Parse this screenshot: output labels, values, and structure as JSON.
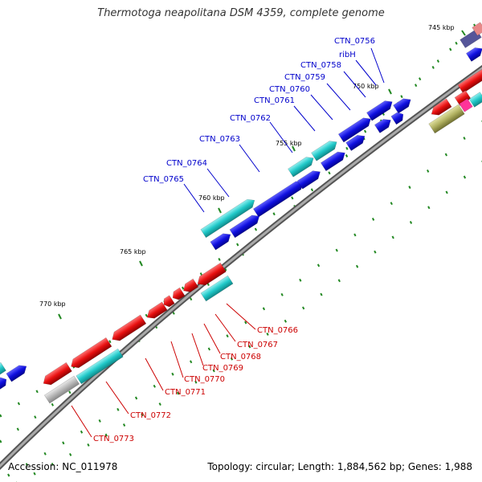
{
  "title": "Thermotoga neapolitana DSM 4359, complete genome",
  "footer": {
    "accession": "Accession: NC_011978",
    "summary": "Topology: circular; Length: 1,884,562 bp; Genes: 1,988"
  },
  "colors": {
    "plus_strand_cds": "#1010e0",
    "minus_strand_cds": "#e81010",
    "cyan_feature": "#20c8c8",
    "gray_feature": "#b8b8b8",
    "olive_feature": "#b0b060",
    "backbone": "#888888",
    "tick": "#228822",
    "plus_label": "#0000cc",
    "minus_label": "#cc0000"
  },
  "scale": {
    "unit": "kbp",
    "major_ticks": [
      {
        "label": "745 kbp"
      },
      {
        "label": "750 kbp"
      },
      {
        "label": "755 kbp"
      },
      {
        "label": "760 kbp"
      },
      {
        "label": "765 kbp"
      },
      {
        "label": "770 kbp"
      }
    ]
  },
  "plus_strand_labels": [
    "CTN_0756",
    "ribH",
    "CTN_0758",
    "CTN_0759",
    "CTN_0760",
    "CTN_0761",
    "CTN_0762",
    "CTN_0763",
    "CTN_0764",
    "CTN_0765"
  ],
  "minus_strand_labels": [
    "CTN_0766",
    "CTN_0767",
    "CTN_0768",
    "CTN_0769",
    "CTN_0770",
    "CTN_0771",
    "CTN_0772",
    "CTN_0773"
  ]
}
